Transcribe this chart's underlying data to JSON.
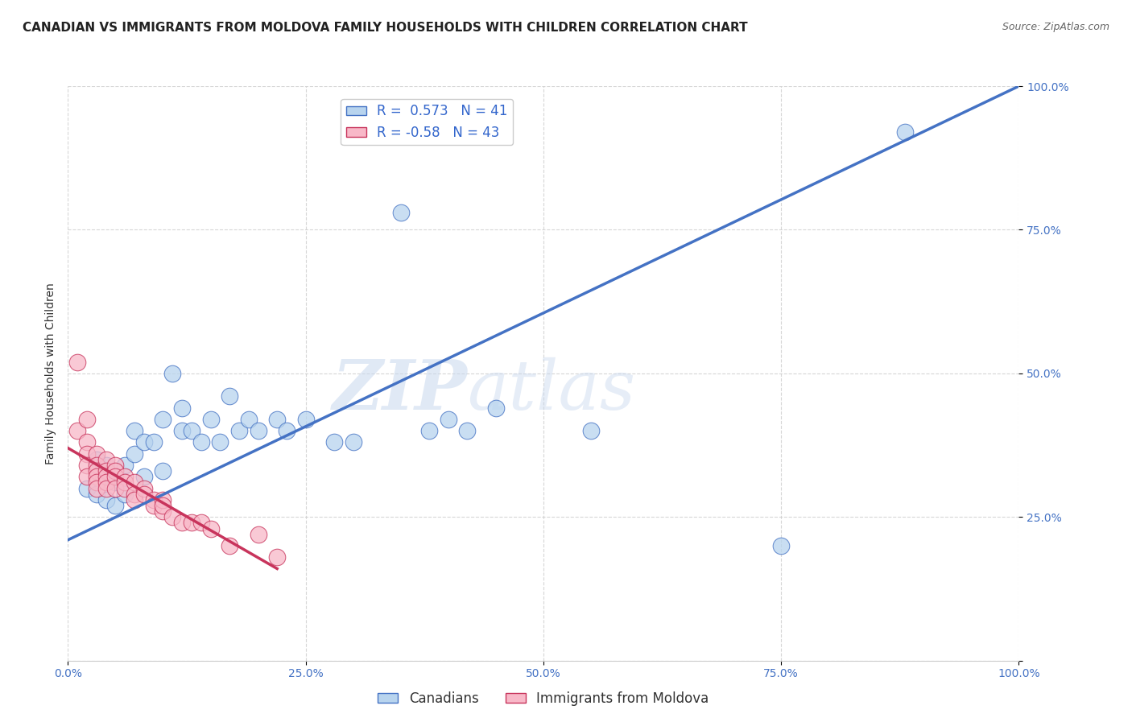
{
  "title": "CANADIAN VS IMMIGRANTS FROM MOLDOVA FAMILY HOUSEHOLDS WITH CHILDREN CORRELATION CHART",
  "source": "Source: ZipAtlas.com",
  "ylabel": "Family Households with Children",
  "r_canadian": 0.573,
  "n_canadian": 41,
  "r_moldova": -0.58,
  "n_moldova": 43,
  "canadian_color": "#b8d4ee",
  "canadian_line_color": "#4472c4",
  "moldova_color": "#f8b8c8",
  "moldova_line_color": "#c8345c",
  "background_color": "#ffffff",
  "grid_color": "#cccccc",
  "watermark_zip": "ZIP",
  "watermark_atlas": "atlas",
  "xlim": [
    0,
    1
  ],
  "ylim": [
    0,
    1
  ],
  "xticks": [
    0.0,
    0.25,
    0.5,
    0.75,
    1.0
  ],
  "yticks": [
    0.0,
    0.25,
    0.5,
    0.75,
    1.0
  ],
  "xticklabels": [
    "0.0%",
    "25.0%",
    "50.0%",
    "75.0%",
    "100.0%"
  ],
  "yticklabels_right": [
    "",
    "25.0%",
    "50.0%",
    "75.0%",
    "100.0%"
  ],
  "canadians_scatter_x": [
    0.02,
    0.03,
    0.03,
    0.04,
    0.04,
    0.04,
    0.05,
    0.05,
    0.06,
    0.06,
    0.07,
    0.07,
    0.08,
    0.08,
    0.09,
    0.1,
    0.1,
    0.11,
    0.12,
    0.12,
    0.13,
    0.14,
    0.15,
    0.16,
    0.17,
    0.18,
    0.19,
    0.2,
    0.22,
    0.23,
    0.25,
    0.28,
    0.3,
    0.35,
    0.38,
    0.4,
    0.42,
    0.45,
    0.55,
    0.75,
    0.88
  ],
  "canadians_scatter_y": [
    0.3,
    0.29,
    0.35,
    0.28,
    0.32,
    0.34,
    0.27,
    0.31,
    0.29,
    0.34,
    0.36,
    0.4,
    0.32,
    0.38,
    0.38,
    0.33,
    0.42,
    0.5,
    0.4,
    0.44,
    0.4,
    0.38,
    0.42,
    0.38,
    0.46,
    0.4,
    0.42,
    0.4,
    0.42,
    0.4,
    0.42,
    0.38,
    0.38,
    0.78,
    0.4,
    0.42,
    0.4,
    0.44,
    0.4,
    0.2,
    0.92
  ],
  "moldova_scatter_x": [
    0.01,
    0.01,
    0.02,
    0.02,
    0.02,
    0.02,
    0.02,
    0.03,
    0.03,
    0.03,
    0.03,
    0.03,
    0.03,
    0.04,
    0.04,
    0.04,
    0.04,
    0.04,
    0.05,
    0.05,
    0.05,
    0.05,
    0.06,
    0.06,
    0.06,
    0.07,
    0.07,
    0.07,
    0.08,
    0.08,
    0.09,
    0.09,
    0.1,
    0.1,
    0.1,
    0.11,
    0.12,
    0.13,
    0.14,
    0.15,
    0.17,
    0.2,
    0.22
  ],
  "moldova_scatter_y": [
    0.52,
    0.4,
    0.42,
    0.38,
    0.36,
    0.34,
    0.32,
    0.36,
    0.34,
    0.33,
    0.32,
    0.31,
    0.3,
    0.35,
    0.33,
    0.32,
    0.31,
    0.3,
    0.34,
    0.33,
    0.32,
    0.3,
    0.32,
    0.31,
    0.3,
    0.31,
    0.29,
    0.28,
    0.3,
    0.29,
    0.28,
    0.27,
    0.26,
    0.28,
    0.27,
    0.25,
    0.24,
    0.24,
    0.24,
    0.23,
    0.2,
    0.22,
    0.18
  ],
  "canadian_trendline_x": [
    0.0,
    1.0
  ],
  "canadian_trendline_y": [
    0.21,
    1.0
  ],
  "moldova_trendline_x": [
    0.0,
    0.22
  ],
  "moldova_trendline_y": [
    0.37,
    0.16
  ],
  "title_fontsize": 11,
  "axis_fontsize": 10,
  "tick_fontsize": 10,
  "legend_fontsize": 12
}
